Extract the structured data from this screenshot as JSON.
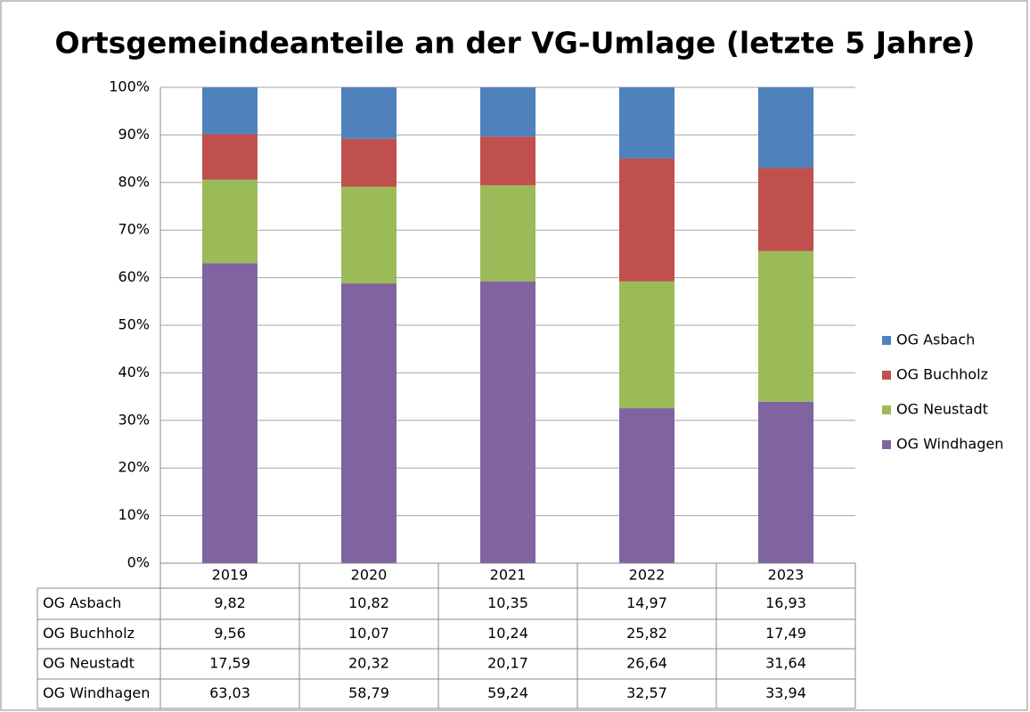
{
  "chart_data": {
    "type": "stacked_bar",
    "title": "Ortsgemeindeanteile an der VG-Umlage (letzte 5 Jahre)",
    "categories": [
      "2019",
      "2020",
      "2021",
      "2022",
      "2023"
    ],
    "series": [
      {
        "name": "OG Asbach",
        "color": "#4f81bd",
        "values": [
          9.82,
          10.82,
          10.35,
          14.97,
          16.93
        ],
        "value_labels": [
          "9,82",
          "10,82",
          "10,35",
          "14,97",
          "16,93"
        ]
      },
      {
        "name": "OG Buchholz",
        "color": "#c0504d",
        "values": [
          9.56,
          10.07,
          10.24,
          25.82,
          17.49
        ],
        "value_labels": [
          "9,56",
          "10,07",
          "10,24",
          "25,82",
          "17,49"
        ]
      },
      {
        "name": "OG Neustadt",
        "color": "#9bbb59",
        "values": [
          17.59,
          20.32,
          20.17,
          26.64,
          31.64
        ],
        "value_labels": [
          "17,59",
          "20,32",
          "20,17",
          "26,64",
          "31,64"
        ]
      },
      {
        "name": "OG Windhagen",
        "color": "#8064a2",
        "values": [
          63.03,
          58.79,
          59.24,
          32.57,
          33.94
        ],
        "value_labels": [
          "63,03",
          "58,79",
          "59,24",
          "32,57",
          "33,94"
        ]
      }
    ],
    "ylim": [
      0,
      100
    ],
    "yticks": [
      {
        "value": 0,
        "label": "0%"
      },
      {
        "value": 10,
        "label": "10%"
      },
      {
        "value": 20,
        "label": "20%"
      },
      {
        "value": 30,
        "label": "30%"
      },
      {
        "value": 40,
        "label": "40%"
      },
      {
        "value": 50,
        "label": "50%"
      },
      {
        "value": 60,
        "label": "60%"
      },
      {
        "value": 70,
        "label": "70%"
      },
      {
        "value": 80,
        "label": "80%"
      },
      {
        "value": 90,
        "label": "90%"
      },
      {
        "value": 100,
        "label": "100%"
      }
    ],
    "grid": true,
    "legend": "right"
  }
}
